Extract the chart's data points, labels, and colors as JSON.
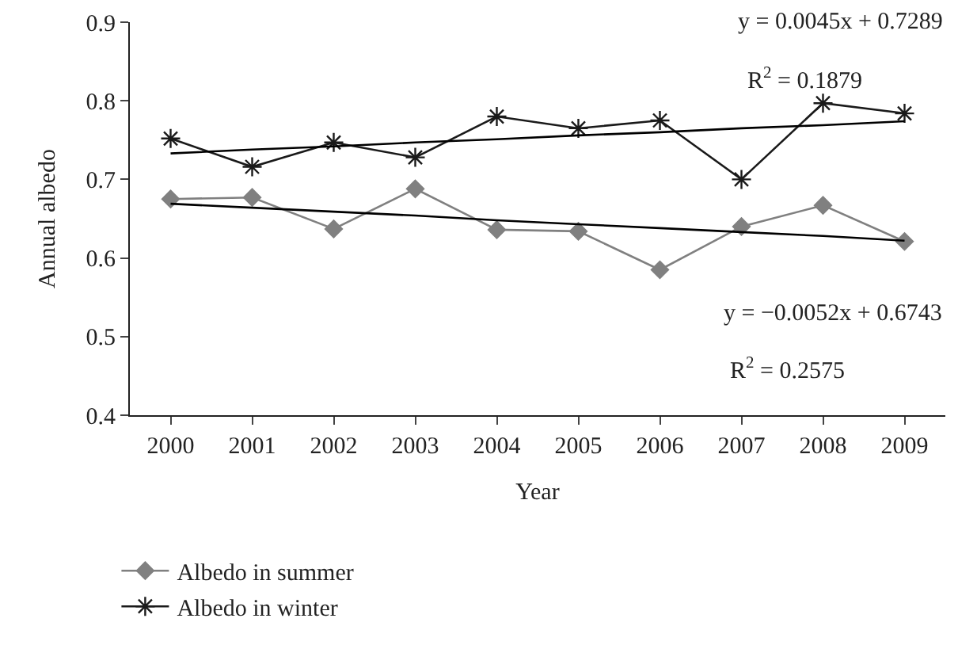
{
  "chart_data": {
    "type": "line",
    "xlabel": "Year",
    "ylabel": "Annual albedo",
    "categories": [
      "2000",
      "2001",
      "2002",
      "2003",
      "2004",
      "2005",
      "2006",
      "2007",
      "2008",
      "2009"
    ],
    "series": [
      {
        "name": "Albedo in summer",
        "color": "#808080",
        "marker": "diamond",
        "values": [
          0.675,
          0.677,
          0.637,
          0.688,
          0.636,
          0.634,
          0.585,
          0.64,
          0.667,
          0.621
        ]
      },
      {
        "name": "Albedo in winter",
        "color": "#1a1a1a",
        "marker": "cross",
        "values": [
          0.752,
          0.716,
          0.747,
          0.728,
          0.78,
          0.765,
          0.775,
          0.7,
          0.797,
          0.784
        ]
      },
      {
        "color": "#000000",
        "marker": "none",
        "values": [
          0.733,
          0.738,
          0.742,
          0.747,
          0.751,
          0.756,
          0.76,
          0.765,
          0.769,
          0.774
        ]
      },
      {
        "color": "#000000",
        "marker": "none",
        "values": [
          0.669,
          0.664,
          0.659,
          0.654,
          0.648,
          0.643,
          0.638,
          0.633,
          0.628,
          0.622
        ]
      }
    ],
    "ylim": [
      0.4,
      0.9
    ],
    "yticks": [
      0.4,
      0.5,
      0.6,
      0.7,
      0.8,
      0.9
    ],
    "legend": "bottom",
    "annotations": [
      "y = 0.0045x + 0.7289",
      "R$^{2}$ = 0.1879",
      "y = −0.0052x + 0.6743",
      "R$^{2}$ = 0.2575"
    ]
  }
}
